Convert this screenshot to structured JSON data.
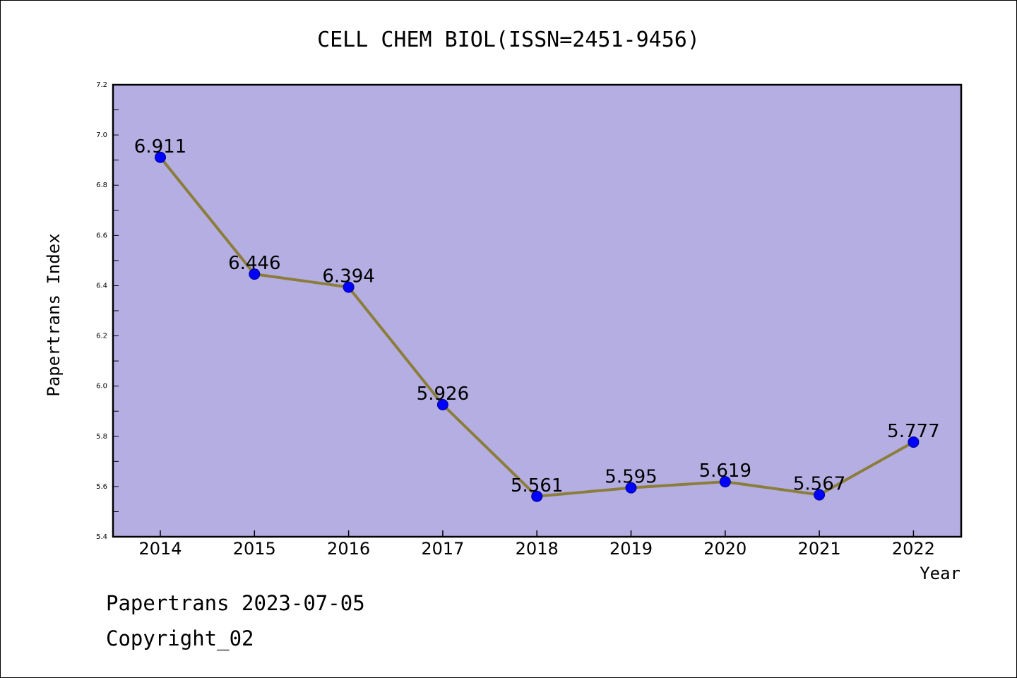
{
  "chart_data": {
    "type": "line",
    "title": "CELL CHEM BIOL(ISSN=2451-9456)",
    "xlabel": "Year",
    "ylabel": "Papertrans Index",
    "categories": [
      "2014",
      "2015",
      "2016",
      "2017",
      "2018",
      "2019",
      "2020",
      "2021",
      "2022"
    ],
    "series": [
      {
        "values": [
          6.911,
          6.446,
          6.394,
          5.926,
          5.561,
          5.595,
          5.619,
          5.567,
          5.777
        ],
        "labels": [
          "6.911",
          "6.446",
          "6.394",
          "5.926",
          "5.561",
          "5.595",
          "5.619",
          "5.567",
          "5.777"
        ]
      }
    ],
    "ylim": [
      5.4,
      7.2
    ],
    "yticks": [
      "5.4",
      "5.6",
      "5.8",
      "6.0",
      "6.2",
      "6.4",
      "6.6",
      "6.8",
      "7.0",
      "7.2"
    ],
    "grid": false,
    "colors": {
      "plot_bg": "#b5aee3",
      "line": "#8b7d3a",
      "marker": "#0000ff"
    }
  },
  "footer": {
    "line1": "Papertrans 2023-07-05",
    "line2": "Copyright_02"
  }
}
